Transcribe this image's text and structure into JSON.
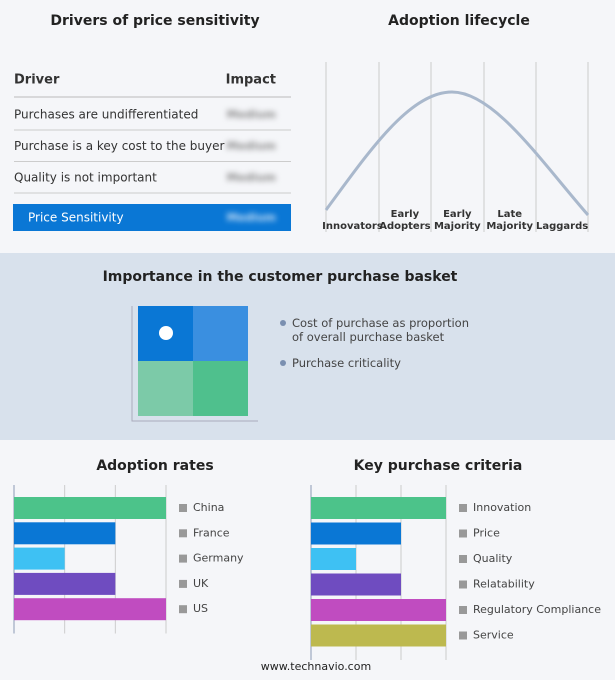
{
  "drivers": {
    "title": "Drivers of price sensitivity",
    "header": [
      "Driver",
      "Impact"
    ],
    "rows": [
      [
        "Purchases are undifferentiated",
        "Medium"
      ],
      [
        "Purchase is a key cost to the buyer",
        "Medium"
      ],
      [
        "Quality is not important",
        "Medium"
      ]
    ],
    "summary": [
      "Price Sensitivity",
      "Medium"
    ]
  },
  "lifecycle": {
    "title": "Adoption lifecycle",
    "stages": [
      [
        "Innovators"
      ],
      [
        "Early",
        "Adopters"
      ],
      [
        "Early",
        "Majority"
      ],
      [
        "Late",
        "Majority"
      ],
      [
        "Laggards"
      ]
    ]
  },
  "importance": {
    "title": "Importance in the customer purchase basket",
    "legend": [
      "Cost of purchase as proportion of overall purchase basket",
      "Purchase criticality"
    ]
  },
  "chart_data": [
    {
      "type": "bar",
      "title": "Adoption rates",
      "categories": [
        "China",
        "France",
        "Germany",
        "UK",
        "US"
      ],
      "values": [
        3,
        2,
        1,
        2,
        3
      ],
      "colors": [
        "#4cc38a",
        "#0a77d5",
        "#3ec1f3",
        "#6f4cc0",
        "#c04cc0"
      ],
      "xlim": [
        0,
        3
      ],
      "xticks": [
        0,
        1,
        2,
        3
      ],
      "grid": true
    },
    {
      "type": "bar",
      "title": "Key purchase criteria",
      "categories": [
        "Innovation",
        "Price",
        "Quality",
        "Relatability",
        "Regulatory Compliance",
        "Service"
      ],
      "values": [
        3,
        2,
        1,
        2,
        3,
        3
      ],
      "colors": [
        "#4cc38a",
        "#0a77d5",
        "#3ec1f3",
        "#6f4cc0",
        "#c04cc0",
        "#bdb94f"
      ],
      "xlim": [
        0,
        3
      ],
      "xticks": [
        0,
        1,
        2,
        3
      ],
      "grid": true
    }
  ],
  "footer": "www.technavio.com"
}
